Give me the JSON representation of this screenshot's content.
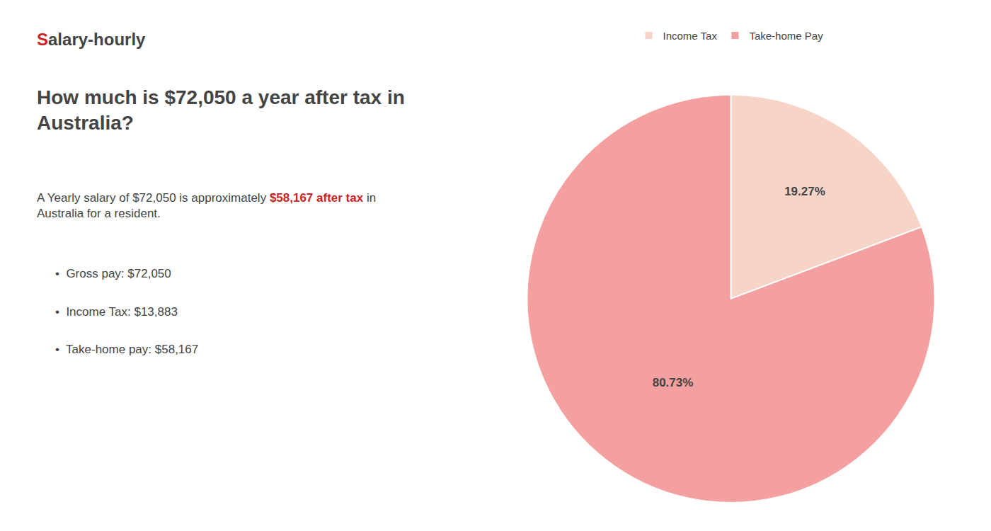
{
  "chart_data": {
    "type": "pie",
    "title": "How much is $72,050 a year after tax in\nAustralia?",
    "categories": [
      "Income Tax",
      "Take-home Pay"
    ],
    "values": [
      19.27,
      80.73
    ],
    "value_labels": [
      "19.27%",
      "80.73%"
    ],
    "colors": [
      "#f7d4c8",
      "#f4a0a0"
    ],
    "data_labels": true,
    "legend": "top",
    "annotations": [
      {
        "text": "S",
        "color": "#cc2222"
      },
      {
        "text": "alary-hourly"
      },
      {
        "text": "A Yearly salary of $72,050 is approximately "
      },
      {
        "text": "$58,167 after tax",
        "color": "#cc2222"
      },
      {
        "text": " in"
      },
      {
        "text": "Australia for a resident."
      },
      {
        "text": "•  Gross pay: $72,050"
      },
      {
        "text": "•  Income Tax: $13,883"
      },
      {
        "text": "•  Take-home pay: $58,167"
      }
    ]
  }
}
